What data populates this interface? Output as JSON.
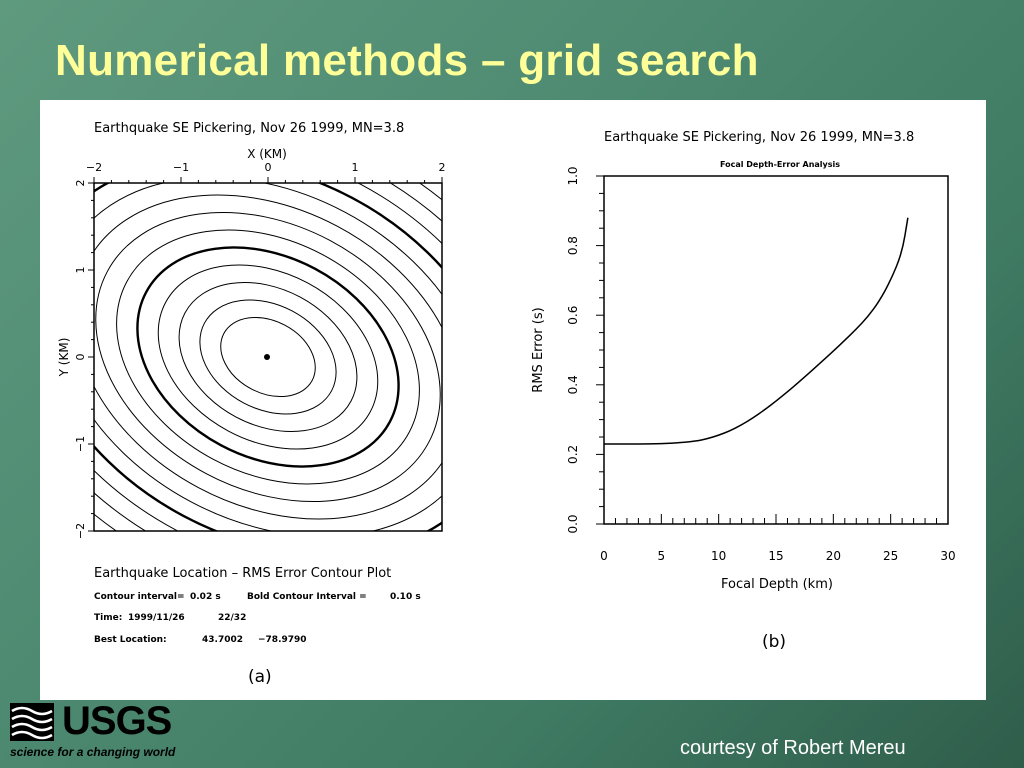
{
  "slide": {
    "title": "Numerical methods – grid search",
    "credit": "courtesy of Robert Mereu",
    "logo": {
      "word": "USGS",
      "tagline": "science for a changing world"
    }
  },
  "chart_data": [
    {
      "type": "contour",
      "panel_label": "(a)",
      "title": "Earthquake SE Pickering, Nov 26 1999, MN=3.8",
      "xlabel": "X (KM)",
      "ylabel": "Y (KM)",
      "xlim": [
        -2,
        2
      ],
      "ylim": [
        -2,
        2
      ],
      "xticks": [
        "−2",
        "−1",
        "0",
        "1",
        "2"
      ],
      "yticks": [
        "2",
        "1",
        "0",
        "−1",
        "−2"
      ],
      "best_point": {
        "x": 0,
        "y": 0
      },
      "footer": {
        "heading": "Earthquake Location – RMS Error Contour Plot",
        "contour_interval_label": "Contour interval=",
        "contour_interval_value": "0.02 s",
        "bold_interval_label": "Bold Contour Interval =",
        "bold_interval_value": "0.10 s",
        "time_label": "Time:",
        "time_date": "1999/11/26",
        "time_clock": "22/32",
        "best_label": "Best Location:",
        "best_lat": "43.7002",
        "best_lon": "−78.9790"
      }
    },
    {
      "type": "line",
      "panel_label": "(b)",
      "title": "Earthquake SE Pickering, Nov 26 1999, MN=3.8",
      "subtitle": "Focal Depth-Error Analysis",
      "xlabel": "Focal Depth (km)",
      "ylabel": "RMS Error (s)",
      "xlim": [
        0,
        30
      ],
      "ylim": [
        0,
        1.0
      ],
      "xticks": [
        "0",
        "5",
        "10",
        "15",
        "20",
        "25",
        "30"
      ],
      "yticks": [
        "0.0",
        "0.2",
        "0.4",
        "0.6",
        "0.8",
        "1.0"
      ],
      "x": [
        0,
        2,
        4,
        6,
        8,
        9,
        10,
        11,
        12,
        13,
        14,
        15,
        16,
        17,
        18,
        19,
        20,
        21,
        22,
        23,
        24,
        25,
        26,
        26.5
      ],
      "y": [
        0.23,
        0.23,
        0.23,
        0.232,
        0.238,
        0.245,
        0.255,
        0.268,
        0.285,
        0.305,
        0.328,
        0.353,
        0.38,
        0.408,
        0.437,
        0.467,
        0.497,
        0.528,
        0.56,
        0.595,
        0.64,
        0.7,
        0.78,
        0.88
      ]
    }
  ]
}
